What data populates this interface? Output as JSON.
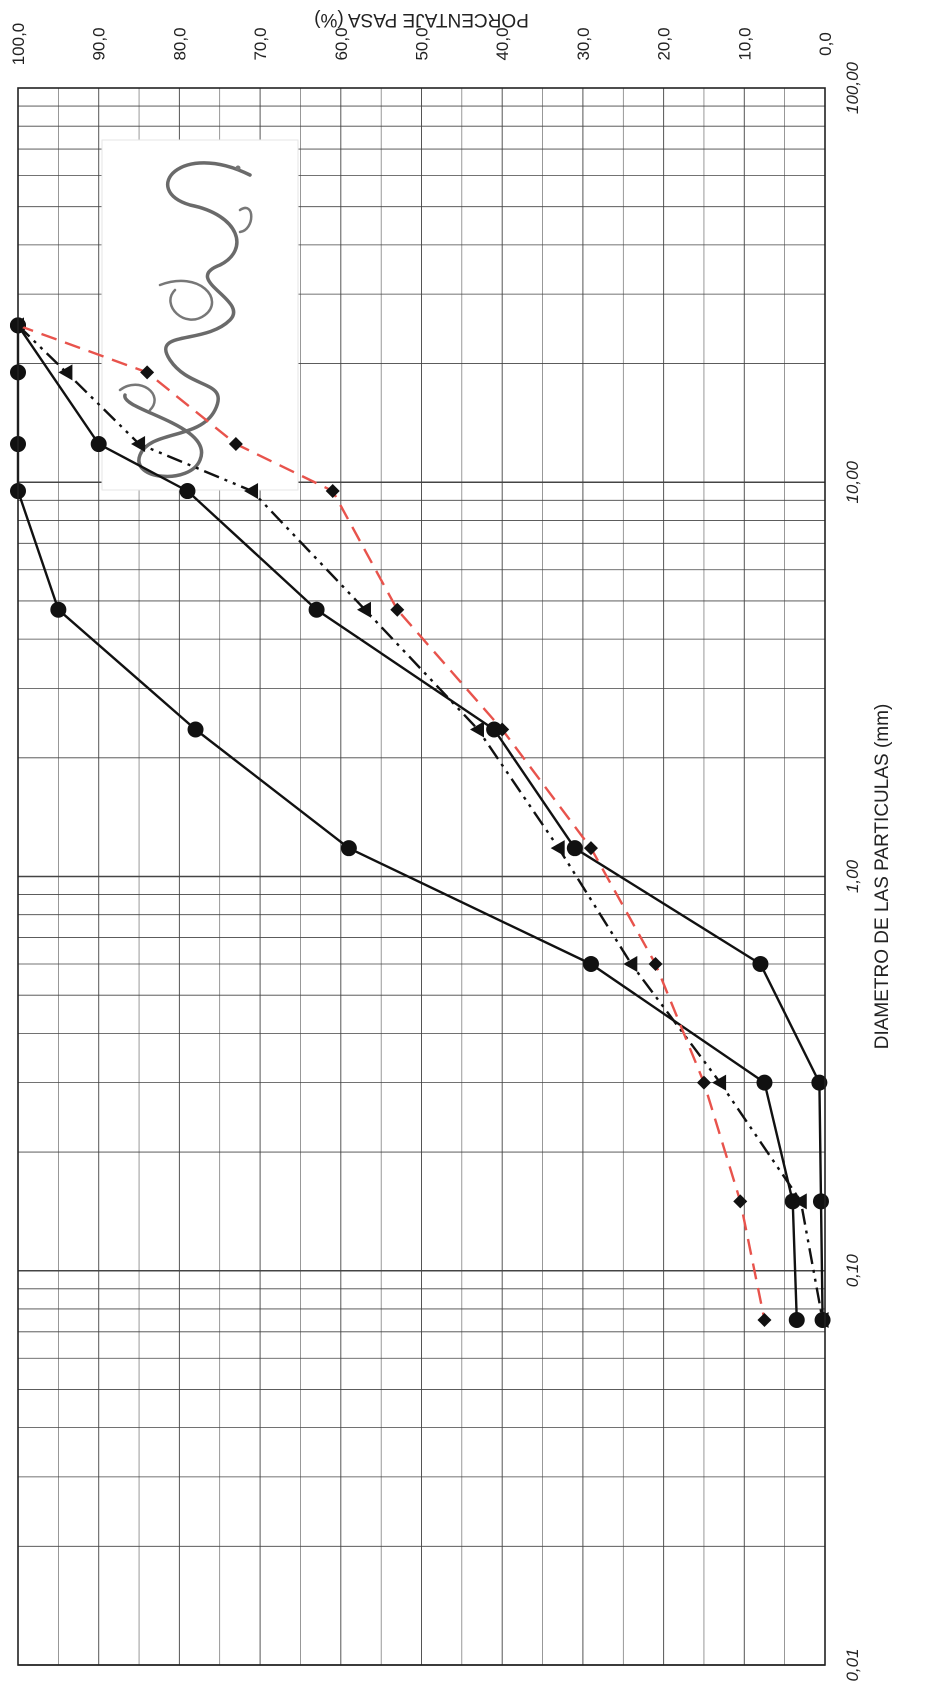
{
  "chart_data": {
    "type": "line",
    "xlabel": "DIAMETRO DE LAS PARTICULAS (mm)",
    "ylabel": "PORCENTAJE PASA (%)",
    "x_scale": "log",
    "x_range": [
      100,
      0.01
    ],
    "y_range": [
      0,
      100
    ],
    "x_ticks": [
      "100,00",
      "10,00",
      "1,00",
      "0,10",
      "0,01"
    ],
    "y_ticks": [
      "100,0",
      "90,0",
      "80,0",
      "70,0",
      "60,0",
      "50,0",
      "40,0",
      "30,0",
      "20,0",
      "10,0",
      "0,0"
    ],
    "grid": true,
    "orientation": "rotated: diameter axis runs top-to-bottom along the right edge, percent axis runs left-to-right along the top edge",
    "series": [
      {
        "style": "solid",
        "color": "#111111",
        "marker": "circle",
        "points": [
          [
            25,
            100
          ],
          [
            12.5,
            90
          ],
          [
            9.5,
            79
          ],
          [
            4.75,
            63
          ],
          [
            2.36,
            41
          ],
          [
            1.18,
            31
          ],
          [
            0.6,
            8
          ],
          [
            0.3,
            0.7
          ],
          [
            0.15,
            0.5
          ],
          [
            0.075,
            0.3
          ]
        ]
      },
      {
        "style": "solid",
        "color": "#111111",
        "marker": "circle",
        "points": [
          [
            25,
            100
          ],
          [
            19,
            100
          ],
          [
            12.5,
            100
          ],
          [
            9.5,
            100
          ],
          [
            4.75,
            95
          ],
          [
            2.36,
            78
          ],
          [
            1.18,
            59
          ],
          [
            0.6,
            29
          ],
          [
            0.3,
            7.5
          ],
          [
            0.15,
            4
          ],
          [
            0.075,
            3.5
          ]
        ]
      },
      {
        "style": "dash-dot-dot",
        "color": "#111111",
        "marker": "triangle",
        "points": [
          [
            25,
            100
          ],
          [
            19,
            94
          ],
          [
            12.5,
            85
          ],
          [
            9.5,
            71
          ],
          [
            4.75,
            57
          ],
          [
            2.36,
            43
          ],
          [
            1.18,
            33
          ],
          [
            0.6,
            24
          ],
          [
            0.3,
            13
          ],
          [
            0.15,
            3
          ],
          [
            0.075,
            0.3
          ]
        ]
      },
      {
        "style": "dashed",
        "color": "#e8534c",
        "marker": "diamond",
        "points": [
          [
            25,
            100
          ],
          [
            19,
            84
          ],
          [
            12.5,
            73
          ],
          [
            9.5,
            61
          ],
          [
            4.75,
            53
          ],
          [
            2.36,
            40
          ],
          [
            1.18,
            29
          ],
          [
            0.6,
            21
          ],
          [
            0.3,
            15
          ],
          [
            0.15,
            10.5
          ],
          [
            0.075,
            7.5
          ]
        ]
      }
    ]
  },
  "signature_text": "signature"
}
